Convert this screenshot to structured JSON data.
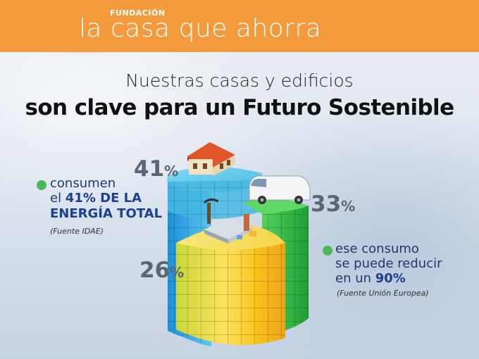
{
  "brand": {
    "prefix": "FUNDACIÓN",
    "name": "la casa que ahorra"
  },
  "headline": {
    "line1": "Nuestras casas y edificios",
    "line2": "son clave para un Futuro Sostenible"
  },
  "segments": [
    {
      "label": "Casas y edificios",
      "value": 41,
      "display": "41",
      "unit": "%"
    },
    {
      "label": "Transporte",
      "value": 33,
      "display": "33",
      "unit": "%"
    },
    {
      "label": "Industria",
      "value": 26,
      "display": "26",
      "unit": "%"
    }
  ],
  "left_note": {
    "line1": "consumen",
    "line2_prefix": "el ",
    "line2_highlight": "41% DE LA",
    "line3": "ENERGÍA TOTAL",
    "source": "(Fuente IDAE)"
  },
  "right_note": {
    "line1": "ese consumo",
    "line2": "se puede reducir",
    "line3_prefix": "en un ",
    "line3_highlight": "90%",
    "source": "(Fuente Unión Europea)"
  },
  "colors": {
    "header": "#f39a3d",
    "buildings": "#49c3e6",
    "transport": "#3fbd4a",
    "industry": "#f2d11d",
    "bullet": "#4fb55c",
    "highlight": "#1b3f94"
  },
  "icons": [
    "house-icon",
    "van-icon",
    "factory-icon"
  ]
}
